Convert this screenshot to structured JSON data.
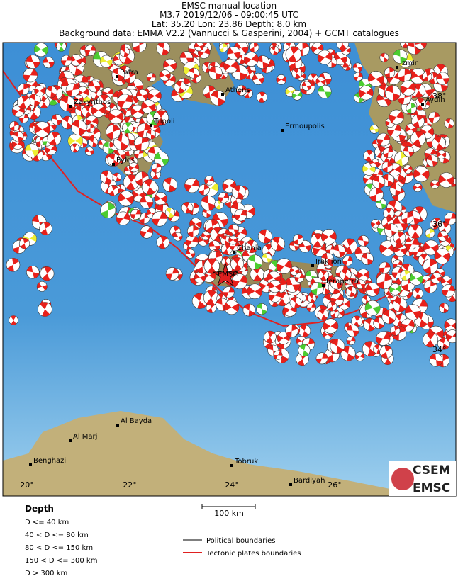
{
  "header": {
    "title": "EMSC manual location",
    "event": "M3.7  2019/12/06 - 09:00:45 UTC",
    "location": "Lat: 35.20   Lon: 23.86    Depth:  8.0 km",
    "background": "Background data: EMMA V2.2 (Vannucci & Gasperini, 2004) + GCMT catalogues"
  },
  "map": {
    "epicenter_label": "EMSC",
    "cities": [
      "Patra",
      "Athens",
      "Zakynthos",
      "Tripoli",
      "Ermoupolis",
      "Pylos",
      "Izmir",
      "Aydin",
      "Chania",
      "Iraklion",
      "Ierapetra",
      "Al Bayda",
      "Al Marj",
      "Benghazi",
      "Tobruk",
      "Bardiyah"
    ],
    "lon_labels": [
      "20°",
      "22°",
      "24°",
      "26°"
    ],
    "lat_labels": [
      "38°",
      "36°",
      "34°"
    ],
    "scale": "100 km"
  },
  "legend": {
    "depth_title": "Depth",
    "depth_classes": [
      "D <= 40 km",
      "40 < D <= 80 km",
      "80 < D <= 150 km",
      "150 < D <= 300 km",
      "D > 300 km"
    ],
    "lines": [
      "Political boundaries",
      "Tectonic plates boundaries"
    ]
  },
  "logo": {
    "top": "CSEM",
    "bottom": "EMSC"
  }
}
